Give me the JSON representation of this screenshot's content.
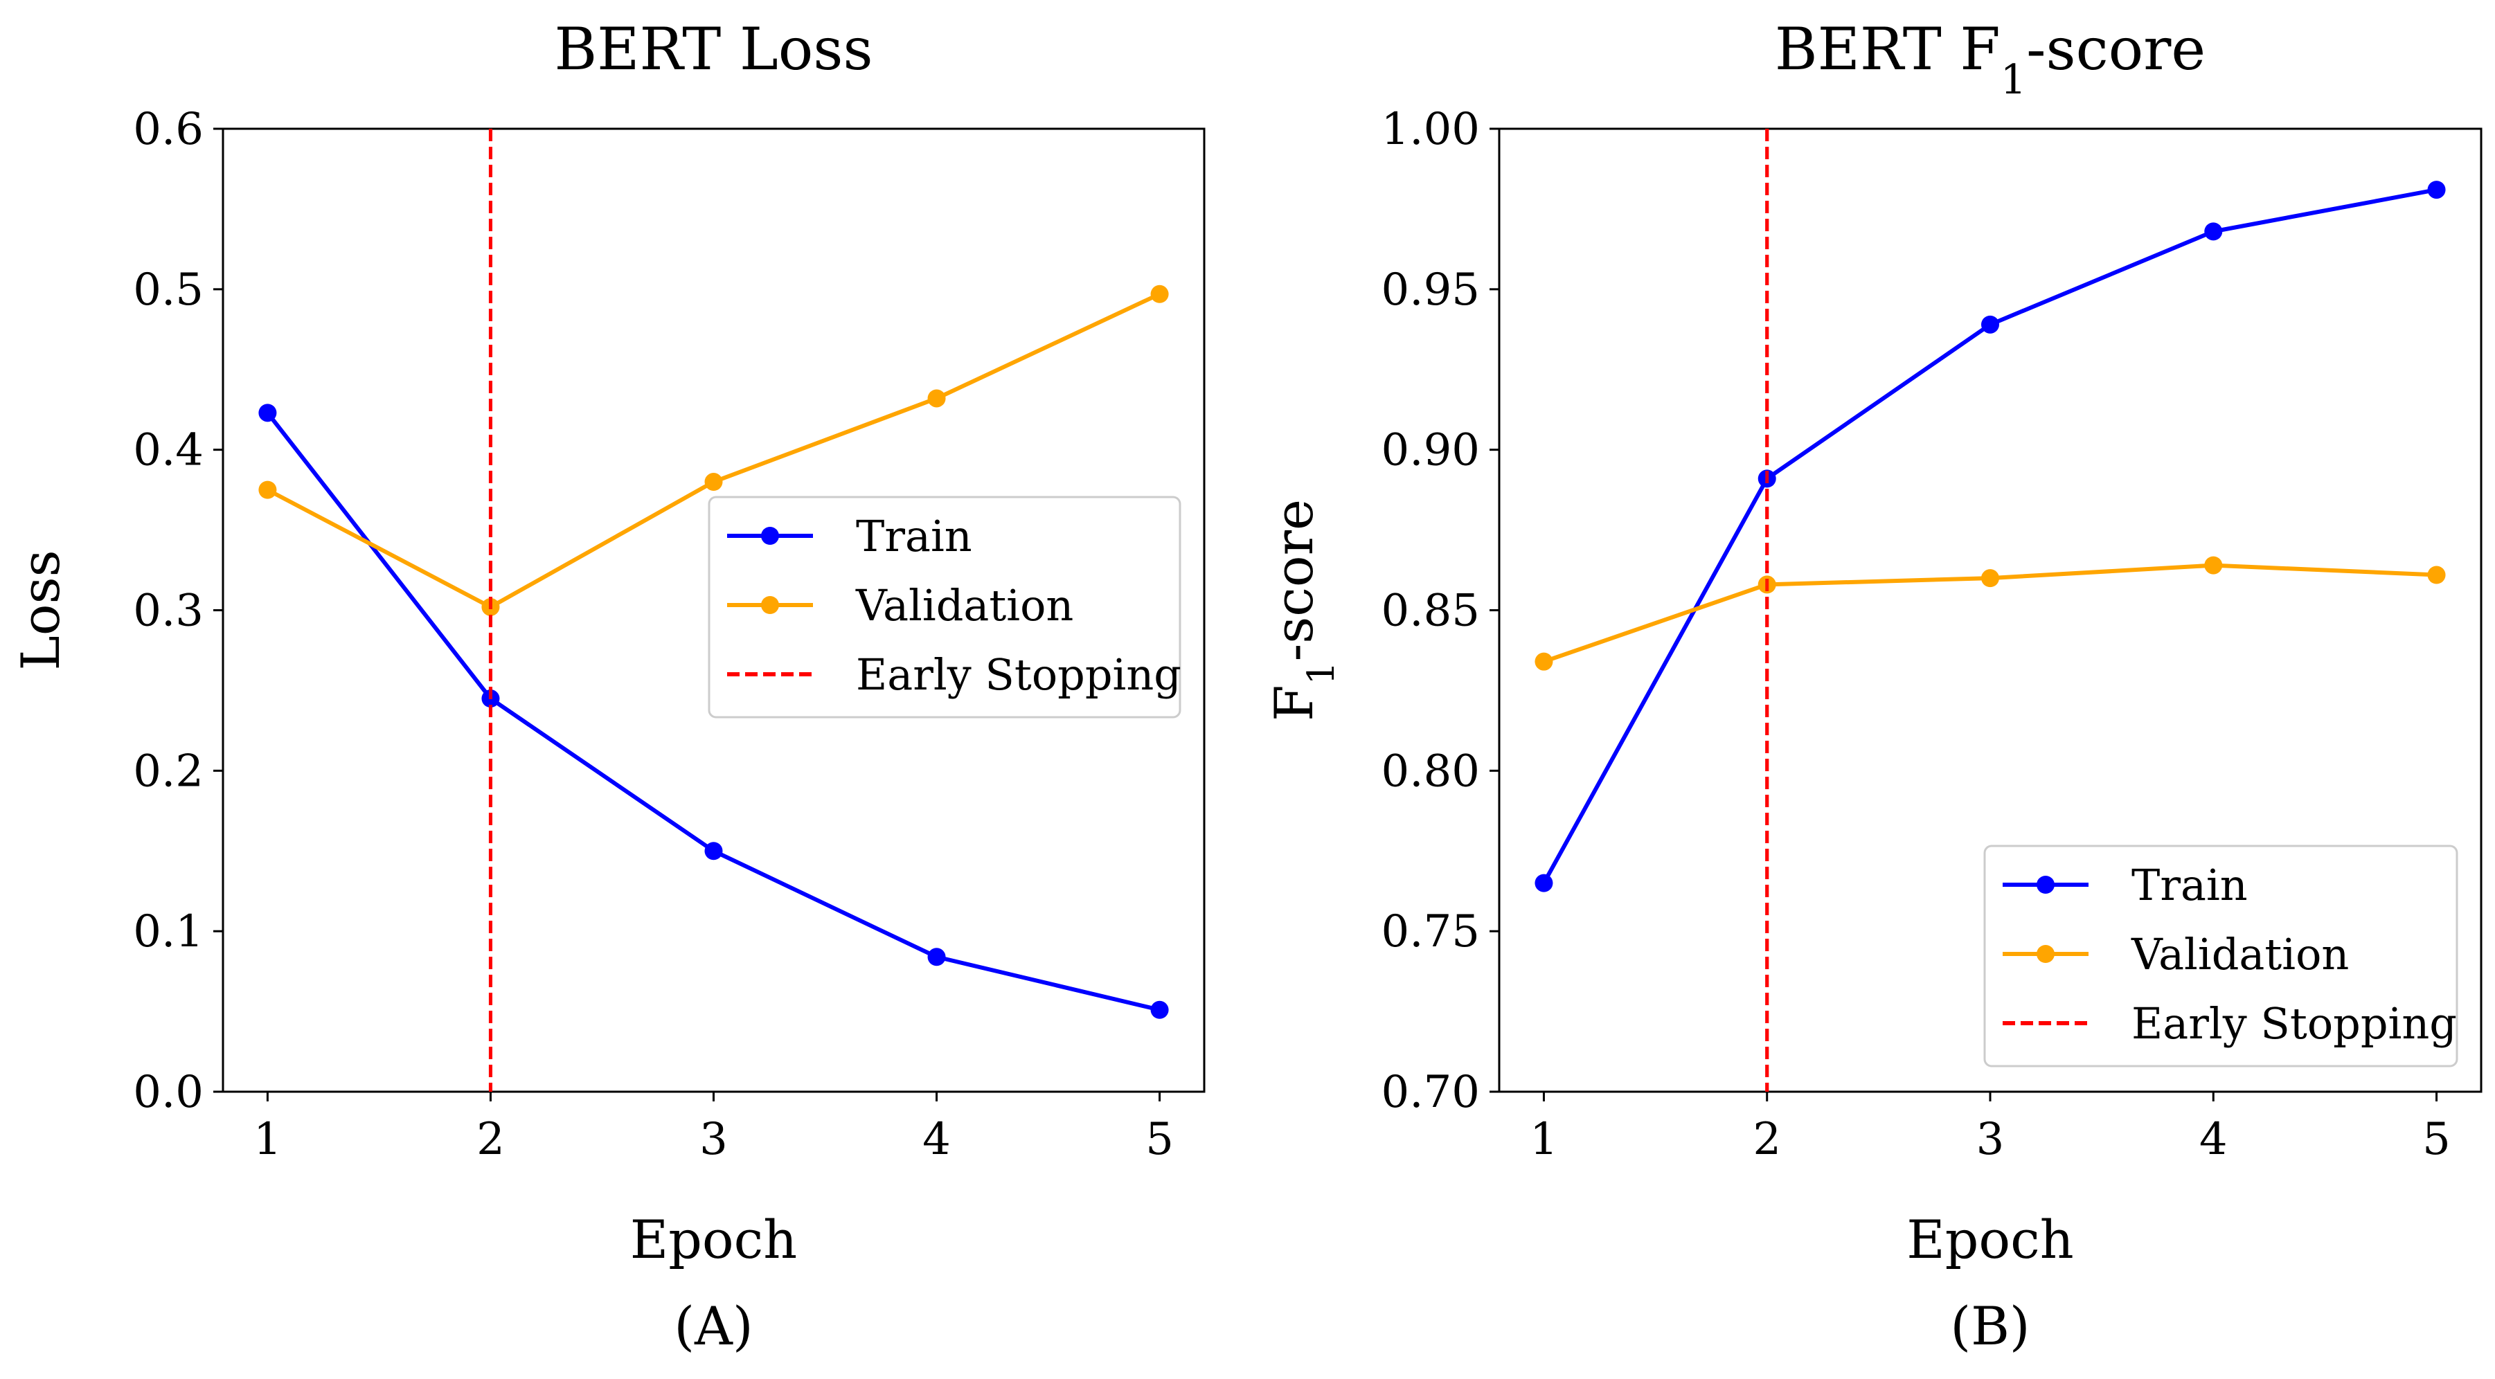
{
  "chart_data": [
    {
      "type": "line",
      "title": "BERT Loss",
      "xlabel": "Epoch",
      "ylabel": "Loss",
      "caption": "(A)",
      "x": [
        1,
        2,
        3,
        4,
        5
      ],
      "xticks": [
        "1",
        "2",
        "3",
        "4",
        "5"
      ],
      "xlim": [
        0.8,
        5.2
      ],
      "ylim": [
        0.0,
        0.6
      ],
      "yticks": [
        "0.0",
        "0.1",
        "0.2",
        "0.3",
        "0.4",
        "0.5",
        "0.6"
      ],
      "series": [
        {
          "name": "Train",
          "color": "#0000ff",
          "values": [
            0.423,
            0.245,
            0.15,
            0.084,
            0.051
          ]
        },
        {
          "name": "Validation",
          "color": "#ffa500",
          "values": [
            0.375,
            0.302,
            0.38,
            0.432,
            0.497
          ]
        }
      ],
      "vline": {
        "name": "Early Stopping",
        "x": 2,
        "color": "#ff0000",
        "style": "dashed"
      },
      "legend": {
        "placement": "center-right",
        "entries": [
          "Train",
          "Validation",
          "Early Stopping"
        ]
      },
      "grid": false
    },
    {
      "type": "line",
      "title": "BERT F1-score",
      "xlabel": "Epoch",
      "ylabel": "F1-score",
      "caption": "(B)",
      "x": [
        1,
        2,
        3,
        4,
        5
      ],
      "xticks": [
        "1",
        "2",
        "3",
        "4",
        "5"
      ],
      "xlim": [
        0.8,
        5.2
      ],
      "ylim": [
        0.7,
        1.0
      ],
      "yticks": [
        "0.70",
        "0.75",
        "0.80",
        "0.85",
        "0.90",
        "0.95",
        "1.00"
      ],
      "series": [
        {
          "name": "Train",
          "color": "#0000ff",
          "values": [
            0.765,
            0.891,
            0.939,
            0.968,
            0.981
          ]
        },
        {
          "name": "Validation",
          "color": "#ffa500",
          "values": [
            0.834,
            0.858,
            0.86,
            0.864,
            0.861
          ]
        }
      ],
      "vline": {
        "name": "Early Stopping",
        "x": 2,
        "color": "#ff0000",
        "style": "dashed"
      },
      "legend": {
        "placement": "lower-right",
        "entries": [
          "Train",
          "Validation",
          "Early Stopping"
        ]
      },
      "grid": false
    }
  ]
}
